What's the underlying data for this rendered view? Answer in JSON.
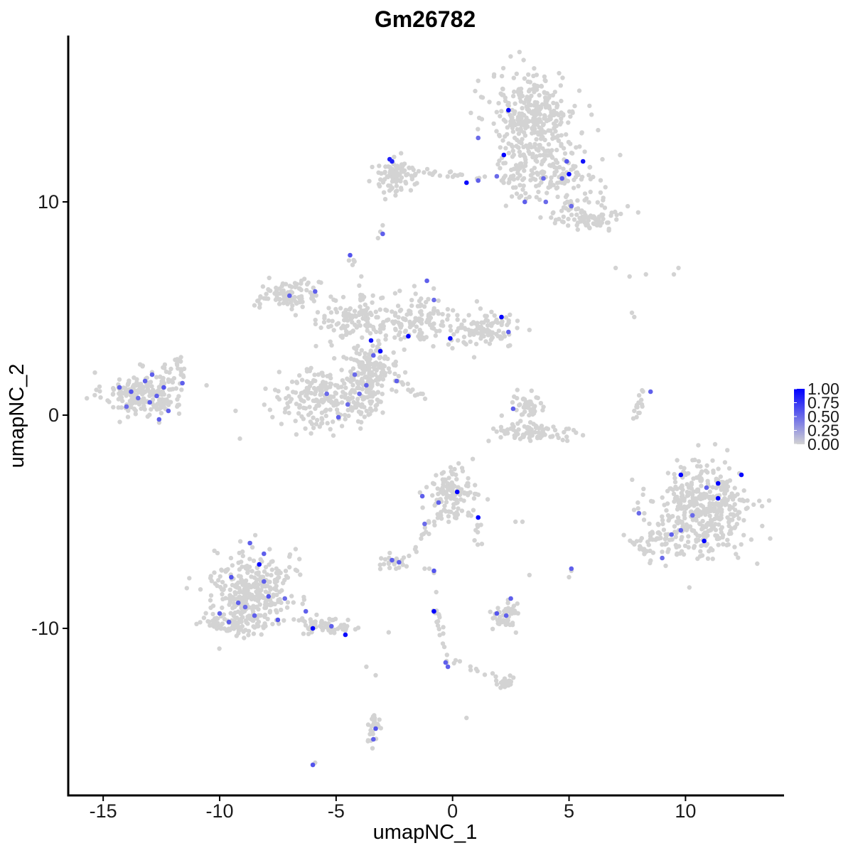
{
  "chart_data": {
    "type": "scatter",
    "title": "Gm26782",
    "xlabel": "umapNC_1",
    "ylabel": "umapNC_2",
    "xlim": [
      -16.5,
      14.2
    ],
    "ylim": [
      -17.8,
      17.8
    ],
    "x_ticks": [
      -15,
      -10,
      -5,
      0,
      5,
      10
    ],
    "x_tick_labels": [
      "-15",
      "-10",
      "-5",
      "0",
      "5",
      "10"
    ],
    "y_ticks": [
      -10,
      0,
      10
    ],
    "y_tick_labels": [
      "-10",
      "0",
      "10"
    ],
    "grid": false,
    "color_low": "#d3d3d3",
    "color_high": "#0000ff",
    "legend": {
      "position": "right",
      "range": [
        0,
        1
      ],
      "labels": [
        "1.00",
        "0.75",
        "0.50",
        "0.25",
        "0.00"
      ],
      "values": [
        1.0,
        0.75,
        0.5,
        0.25,
        0.0
      ]
    },
    "clusters": [
      {
        "cx": -13.3,
        "cy": 1.0,
        "sx": 1.0,
        "sy": 0.6,
        "n": 220
      },
      {
        "cx": -11.8,
        "cy": 2.2,
        "sx": 0.3,
        "sy": 0.35,
        "n": 20
      },
      {
        "cx": 3.5,
        "cy": 14.2,
        "sx": 1.1,
        "sy": 1.1,
        "n": 300
      },
      {
        "cx": 4.0,
        "cy": 11.5,
        "sx": 1.3,
        "sy": 0.8,
        "n": 180
      },
      {
        "cx": 5.8,
        "cy": 9.4,
        "sx": 0.9,
        "sy": 0.45,
        "n": 90
      },
      {
        "cx": -2.4,
        "cy": 11.2,
        "sx": 0.6,
        "sy": 0.45,
        "n": 90
      },
      {
        "cx": -7.0,
        "cy": 5.6,
        "sx": 0.8,
        "sy": 0.4,
        "n": 100
      },
      {
        "cx": -4.0,
        "cy": 4.4,
        "sx": 1.0,
        "sy": 0.6,
        "n": 120
      },
      {
        "cx": -1.5,
        "cy": 4.5,
        "sx": 0.8,
        "sy": 0.7,
        "n": 110
      },
      {
        "cx": 1.3,
        "cy": 4.0,
        "sx": 0.9,
        "sy": 0.5,
        "n": 110
      },
      {
        "cx": -3.5,
        "cy": 2.2,
        "sx": 0.7,
        "sy": 0.6,
        "n": 110
      },
      {
        "cx": -5.8,
        "cy": 0.8,
        "sx": 1.0,
        "sy": 0.8,
        "n": 170
      },
      {
        "cx": -4.0,
        "cy": 0.9,
        "sx": 0.7,
        "sy": 0.8,
        "n": 110
      },
      {
        "cx": 3.2,
        "cy": 0.4,
        "sx": 0.4,
        "sy": 0.5,
        "n": 45
      },
      {
        "cx": 3.4,
        "cy": -0.8,
        "sx": 1.1,
        "sy": 0.3,
        "n": 80
      },
      {
        "cx": 10.7,
        "cy": -4.5,
        "sx": 1.3,
        "sy": 1.3,
        "n": 420
      },
      {
        "cx": 9.0,
        "cy": -6.0,
        "sx": 0.7,
        "sy": 0.5,
        "n": 50
      },
      {
        "cx": -0.1,
        "cy": -3.7,
        "sx": 0.6,
        "sy": 0.7,
        "n": 120
      },
      {
        "cx": -8.6,
        "cy": -8.2,
        "sx": 1.0,
        "sy": 1.1,
        "n": 320
      },
      {
        "cx": -9.4,
        "cy": -9.7,
        "sx": 0.8,
        "sy": 0.3,
        "n": 80
      },
      {
        "cx": -5.6,
        "cy": -9.9,
        "sx": 0.9,
        "sy": 0.25,
        "n": 60
      },
      {
        "cx": 2.3,
        "cy": -9.4,
        "sx": 0.35,
        "sy": 0.4,
        "n": 45
      },
      {
        "cx": -2.5,
        "cy": -6.9,
        "sx": 0.35,
        "sy": 0.25,
        "n": 25
      },
      {
        "cx": 2.2,
        "cy": -12.6,
        "sx": 0.25,
        "sy": 0.15,
        "n": 18
      },
      {
        "cx": -3.4,
        "cy": -14.7,
        "sx": 0.15,
        "sy": 0.5,
        "n": 25
      }
    ],
    "bridges": [
      {
        "x1": -3.0,
        "y1": 11.6,
        "x2": 2.5,
        "y2": 11.0,
        "n": 30
      },
      {
        "x1": 2.5,
        "y1": 11.0,
        "x2": 4.0,
        "y2": 13.8,
        "n": 20
      },
      {
        "x1": -4.3,
        "y1": 7.4,
        "x2": -3.6,
        "y2": 4.5,
        "n": 18
      },
      {
        "x1": -2.5,
        "y1": 1.8,
        "x2": -1.2,
        "y2": 0.7,
        "n": 14
      },
      {
        "x1": 8.2,
        "y1": 1.1,
        "x2": 7.8,
        "y2": -0.3,
        "n": 16
      },
      {
        "x1": -0.3,
        "y1": -4.3,
        "x2": -1.7,
        "y2": -6.3,
        "n": 16
      },
      {
        "x1": -0.7,
        "y1": -9.1,
        "x2": -0.2,
        "y2": -11.7,
        "n": 18
      },
      {
        "x1": 0.0,
        "y1": -11.5,
        "x2": 2.2,
        "y2": -12.5,
        "n": 14
      },
      {
        "x1": 1.0,
        "y1": -5.0,
        "x2": 1.2,
        "y2": -6.3,
        "n": 8
      }
    ],
    "singletons": [
      [
        -3.1,
        8.6
      ],
      [
        -3.0,
        8.9
      ],
      [
        -3.2,
        8.3
      ],
      [
        7.0,
        6.9
      ],
      [
        7.6,
        6.5
      ],
      [
        8.3,
        6.6
      ],
      [
        9.5,
        6.6
      ],
      [
        9.7,
        6.9
      ],
      [
        7.7,
        4.8
      ],
      [
        7.8,
        4.6
      ],
      [
        -3.7,
        -11.8
      ],
      [
        -3.3,
        -12.2
      ],
      [
        0.6,
        -14.2
      ],
      [
        -6.0,
        -16.4
      ],
      [
        -5.9,
        -16.3
      ],
      [
        2.7,
        -5.0
      ],
      [
        3.0,
        -5.0
      ],
      [
        -0.8,
        -7.4
      ],
      [
        -1.2,
        -7.2
      ],
      [
        3.3,
        -7.5
      ],
      [
        5.1,
        -7.3
      ],
      [
        5.0,
        -7.6
      ],
      [
        -0.7,
        -8.3
      ],
      [
        -1.0,
        -7.2
      ]
    ],
    "expressed": [
      [
        2.4,
        14.3,
        1.0
      ],
      [
        2.2,
        12.2,
        1.0
      ],
      [
        0.6,
        10.9,
        0.95
      ],
      [
        5.0,
        11.3,
        1.0
      ],
      [
        5.6,
        11.9,
        0.92
      ],
      [
        -2.7,
        12.0,
        0.85
      ],
      [
        -2.6,
        11.9,
        0.85
      ],
      [
        4.9,
        11.9,
        0.6
      ],
      [
        4.7,
        11.1,
        0.55
      ],
      [
        3.9,
        11.1,
        0.5
      ],
      [
        1.9,
        11.2,
        0.5
      ],
      [
        1.1,
        11.0,
        0.55
      ],
      [
        4.0,
        10.0,
        0.5
      ],
      [
        3.1,
        10.0,
        0.55
      ],
      [
        5.1,
        9.8,
        0.5
      ],
      [
        1.1,
        13.0,
        0.5
      ],
      [
        -3.0,
        8.5,
        0.55
      ],
      [
        -4.4,
        7.5,
        0.6
      ],
      [
        -7.0,
        5.6,
        0.55
      ],
      [
        -5.9,
        5.8,
        0.55
      ],
      [
        2.1,
        4.6,
        1.0
      ],
      [
        -1.9,
        3.7,
        1.0
      ],
      [
        -0.1,
        3.6,
        0.95
      ],
      [
        -3.5,
        3.5,
        0.92
      ],
      [
        -3.1,
        3.0,
        0.95
      ],
      [
        -1.1,
        6.3,
        0.55
      ],
      [
        -0.8,
        5.4,
        0.5
      ],
      [
        2.4,
        3.9,
        0.55
      ],
      [
        -3.4,
        2.8,
        0.55
      ],
      [
        -4.2,
        1.9,
        0.5
      ],
      [
        -3.7,
        1.4,
        0.55
      ],
      [
        -4.0,
        1.0,
        0.5
      ],
      [
        -5.4,
        1.0,
        0.5
      ],
      [
        -2.4,
        1.6,
        0.55
      ],
      [
        -4.9,
        -0.1,
        0.55
      ],
      [
        -4.5,
        0.5,
        0.5
      ],
      [
        -14.3,
        1.3,
        0.55
      ],
      [
        -13.8,
        1.1,
        0.6
      ],
      [
        -13.2,
        1.6,
        0.55
      ],
      [
        -12.9,
        1.9,
        0.55
      ],
      [
        -12.4,
        1.3,
        0.6
      ],
      [
        -12.7,
        0.9,
        0.55
      ],
      [
        -13.0,
        0.6,
        0.55
      ],
      [
        -12.2,
        0.2,
        0.55
      ],
      [
        -12.6,
        -0.2,
        0.55
      ],
      [
        -11.6,
        1.5,
        0.55
      ],
      [
        -14.0,
        0.4,
        0.5
      ],
      [
        -13.5,
        0.8,
        0.5
      ],
      [
        8.5,
        1.1,
        0.55
      ],
      [
        2.6,
        0.3,
        0.55
      ],
      [
        9.8,
        -2.8,
        1.0
      ],
      [
        11.4,
        -3.2,
        1.0
      ],
      [
        11.4,
        -3.9,
        1.0
      ],
      [
        12.4,
        -2.8,
        0.95
      ],
      [
        10.8,
        -5.9,
        1.0
      ],
      [
        9.8,
        -5.4,
        0.55
      ],
      [
        10.3,
        -4.7,
        0.5
      ],
      [
        10.9,
        -3.4,
        0.55
      ],
      [
        9.4,
        -5.6,
        0.55
      ],
      [
        9.0,
        -6.7,
        0.5
      ],
      [
        8.0,
        -4.6,
        0.5
      ],
      [
        0.2,
        -3.6,
        1.0
      ],
      [
        1.1,
        -4.8,
        1.0
      ],
      [
        -0.6,
        -4.1,
        0.55
      ],
      [
        -1.3,
        -3.8,
        0.55
      ],
      [
        -1.2,
        -5.1,
        0.5
      ],
      [
        -8.3,
        -7.0,
        1.0
      ],
      [
        -6.0,
        -10.0,
        1.0
      ],
      [
        -4.6,
        -10.3,
        0.95
      ],
      [
        -8.7,
        -6.0,
        0.55
      ],
      [
        -9.5,
        -7.6,
        0.6
      ],
      [
        -8.1,
        -7.8,
        0.55
      ],
      [
        -7.9,
        -8.5,
        0.6
      ],
      [
        -9.2,
        -8.8,
        0.55
      ],
      [
        -8.5,
        -9.4,
        0.55
      ],
      [
        -10.0,
        -9.3,
        0.55
      ],
      [
        -7.5,
        -9.6,
        0.6
      ],
      [
        -9.6,
        -9.7,
        0.55
      ],
      [
        -7.2,
        -8.6,
        0.5
      ],
      [
        -6.3,
        -9.2,
        0.55
      ],
      [
        -5.2,
        -9.9,
        0.55
      ],
      [
        -8.1,
        -6.5,
        0.55
      ],
      [
        -8.9,
        -9.0,
        0.5
      ],
      [
        -0.8,
        -9.2,
        1.0
      ],
      [
        -0.2,
        -11.8,
        0.55
      ],
      [
        -0.3,
        -11.6,
        0.55
      ],
      [
        -2.6,
        -6.8,
        0.55
      ],
      [
        -2.3,
        -6.9,
        0.55
      ],
      [
        1.9,
        -9.3,
        0.6
      ],
      [
        2.3,
        -9.4,
        0.55
      ],
      [
        2.5,
        -8.6,
        0.55
      ],
      [
        5.1,
        -7.2,
        0.55
      ],
      [
        -3.3,
        -14.7,
        0.6
      ],
      [
        -3.4,
        -15.2,
        0.55
      ],
      [
        -6.0,
        -16.4,
        0.6
      ],
      [
        -0.8,
        -7.3,
        0.6
      ]
    ]
  }
}
